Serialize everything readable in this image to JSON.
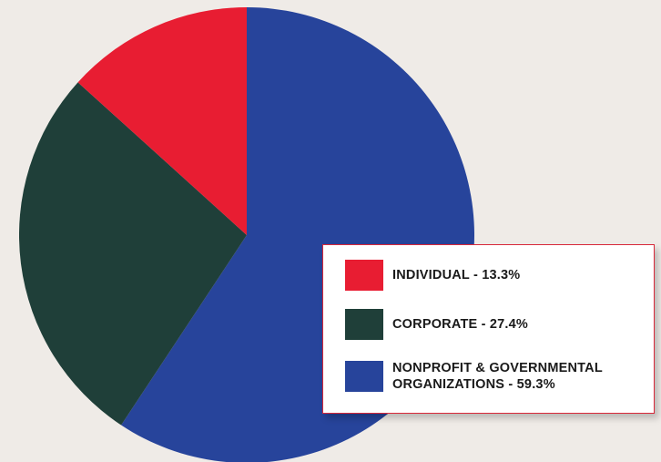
{
  "chart_data": {
    "type": "pie",
    "start_angle_deg": 0,
    "direction": "clockwise",
    "slices": [
      {
        "key": "nonprofit",
        "name": "NONPROFIT & GOVERNMENTAL",
        "name_line1": "NONPROFIT & GOVERNMENTAL",
        "name_line2": "ORGANIZATIONS",
        "value": 59.3,
        "value_label": "59.3%",
        "color": "#27449b"
      },
      {
        "key": "corporate",
        "name": "CORPORATE",
        "value": 27.4,
        "value_label": "27.4%",
        "color": "#1f3f39"
      },
      {
        "key": "individual",
        "name": "INDIVIDUAL",
        "value": 13.3,
        "value_label": "13.3%",
        "color": "#e81d32"
      }
    ],
    "legend": {
      "placement": "bottom-right",
      "border_color": "#d8283a",
      "separator": " - "
    }
  }
}
